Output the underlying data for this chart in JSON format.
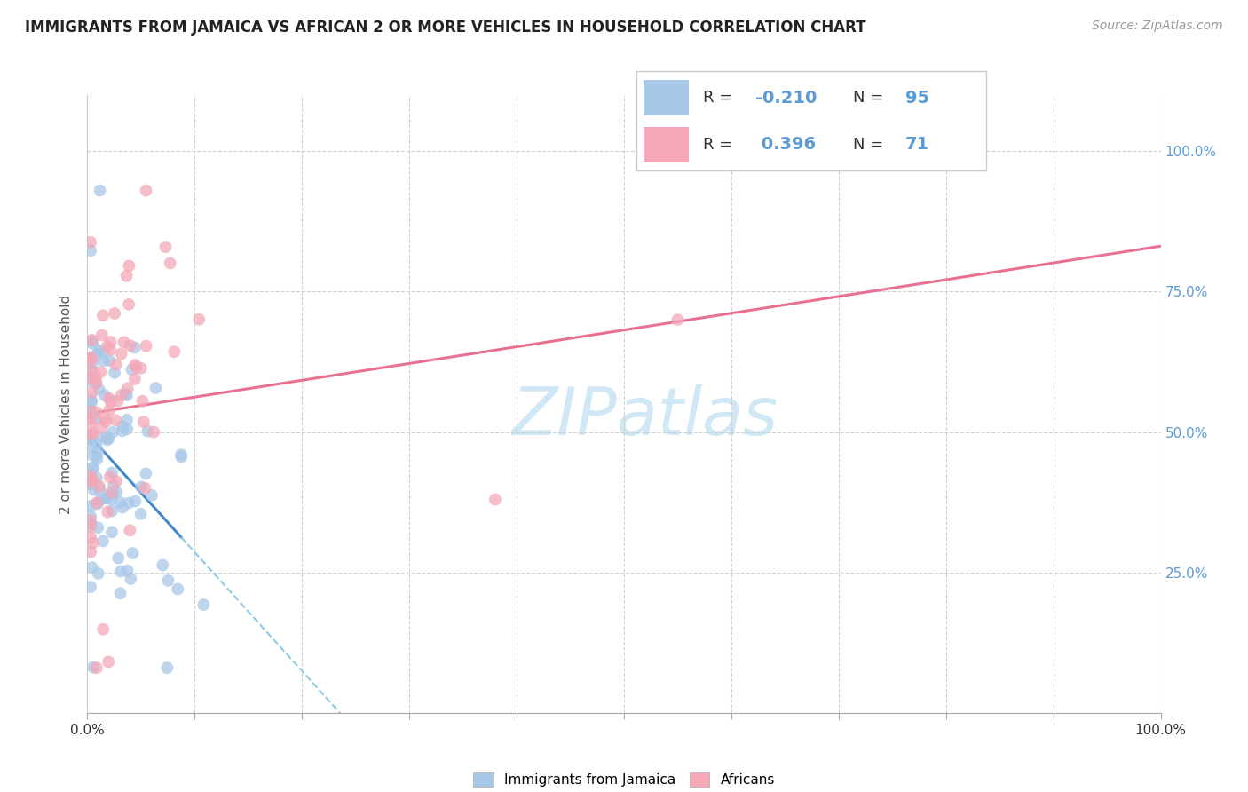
{
  "title": "IMMIGRANTS FROM JAMAICA VS AFRICAN 2 OR MORE VEHICLES IN HOUSEHOLD CORRELATION CHART",
  "source": "Source: ZipAtlas.com",
  "ylabel": "2 or more Vehicles in Household",
  "xlim": [
    0.0,
    1.0
  ],
  "ylim": [
    0.0,
    1.1
  ],
  "r_jamaica": -0.21,
  "n_jamaica": 95,
  "r_african": 0.396,
  "n_african": 71,
  "color_jamaica": "#a8c8e8",
  "color_african": "#f4a8b8",
  "trendline_jamaica_solid_color": "#4488cc",
  "trendline_african_color": "#e87090",
  "trendline_jamaica_dashed_color": "#90c8e8",
  "watermark_color": "#d0e8f5",
  "right_ytick_labels": [
    "100.0%",
    "75.0%",
    "50.0%",
    "25.0%"
  ],
  "right_ytick_positions": [
    1.0,
    0.75,
    0.5,
    0.25
  ],
  "right_ytick_color": "#5b9bd5",
  "grid_color": "#cccccc",
  "title_fontsize": 12,
  "source_fontsize": 10,
  "legend_r_color": "#5b9bd5",
  "legend_n_color": "#5b9bd5",
  "bottom_legend_labels": [
    "Immigrants from Jamaica",
    "Africans"
  ],
  "xtick_positions": [
    0.0,
    0.1,
    0.2,
    0.3,
    0.4,
    0.5,
    0.6,
    0.7,
    0.8,
    0.9,
    1.0
  ],
  "ytick_positions": [
    0.0,
    0.25,
    0.5,
    0.75,
    1.0
  ],
  "scatter_size": 100,
  "scatter_alpha": 0.75,
  "trendline_solid_lw": 2.2,
  "trendline_dashed_lw": 1.5
}
